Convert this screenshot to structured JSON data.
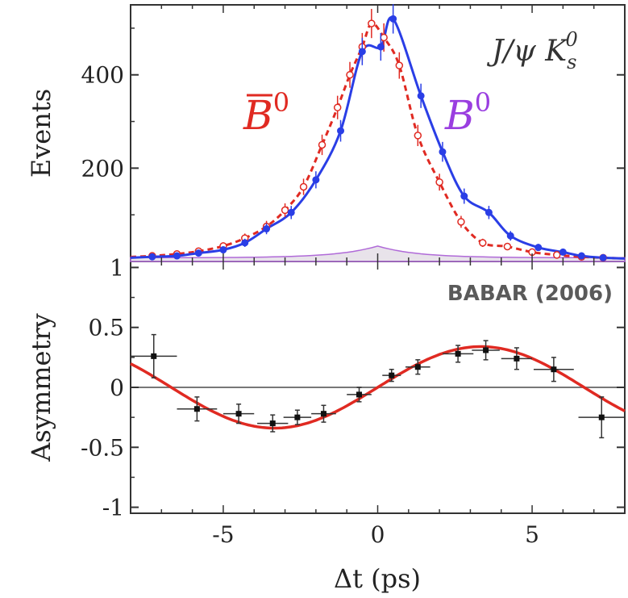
{
  "chart_data": [
    {
      "type": "scatter",
      "ylabel": "Events",
      "xlim": [
        -8,
        8
      ],
      "ylim": [
        0,
        550
      ],
      "yticks": [
        200,
        400
      ],
      "grid": false,
      "annotations": {
        "channel_main": "J/ψ K",
        "channel_sub": "s",
        "channel_sup": "0",
        "bbar_label": "B",
        "bbar_sup": "0",
        "b_label": "B",
        "b_sup": "0"
      },
      "series": [
        {
          "name": "B̄0",
          "color": "#e02a22",
          "marker": "open-circle",
          "fit_style": "dashed",
          "x": [
            -7.3,
            -6.5,
            -5.8,
            -5.0,
            -4.3,
            -3.6,
            -3.0,
            -2.4,
            -1.8,
            -1.3,
            -0.9,
            -0.5,
            -0.2,
            0.2,
            0.7,
            1.3,
            2.0,
            2.7,
            3.4,
            4.2,
            5.0,
            5.8,
            6.6,
            7.3
          ],
          "values": [
            12,
            16,
            22,
            33,
            50,
            75,
            110,
            160,
            250,
            330,
            400,
            460,
            510,
            480,
            420,
            270,
            170,
            85,
            40,
            32,
            20,
            14,
            10,
            8
          ]
        },
        {
          "name": "B0",
          "color": "#2a3ee6",
          "marker": "filled-circle",
          "fit_style": "solid",
          "x": [
            -7.3,
            -6.5,
            -5.8,
            -5.0,
            -4.3,
            -3.6,
            -2.8,
            -2.0,
            -1.2,
            -0.5,
            0.1,
            0.5,
            1.4,
            2.1,
            2.8,
            3.6,
            4.3,
            5.2,
            6.0,
            6.6,
            7.3
          ],
          "values": [
            10,
            12,
            18,
            25,
            40,
            70,
            105,
            175,
            280,
            450,
            460,
            520,
            355,
            235,
            140,
            105,
            55,
            30,
            20,
            12,
            8
          ]
        }
      ],
      "background": {
        "name": "background",
        "color": "#b06ad8",
        "peak": 25
      }
    },
    {
      "type": "scatter",
      "xlabel": "Δt (ps)",
      "ylabel": "Asymmetry",
      "xlim": [
        -8,
        8
      ],
      "ylim": [
        -1.05,
        1.05
      ],
      "xticks": [
        -5,
        0,
        5
      ],
      "yticks": [
        -1,
        -0.5,
        0,
        0.5,
        1
      ],
      "ytick_labels": [
        "-1",
        "-0.5",
        "0",
        "0.5",
        "1"
      ],
      "xtick_labels": [
        "-5",
        "0",
        "5"
      ],
      "grid": false,
      "annotation": "BABAR (2006)",
      "series": [
        {
          "name": "data",
          "color": "#111111",
          "x": [
            -7.25,
            -5.85,
            -4.5,
            -3.4,
            -2.6,
            -1.75,
            -0.6,
            0.45,
            1.3,
            2.6,
            3.5,
            4.5,
            5.7,
            7.25
          ],
          "values": [
            0.26,
            -0.18,
            -0.22,
            -0.3,
            -0.25,
            -0.22,
            -0.06,
            0.1,
            0.17,
            0.28,
            0.31,
            0.24,
            0.15,
            -0.25
          ],
          "xerr": [
            0.75,
            0.65,
            0.5,
            0.5,
            0.45,
            0.4,
            0.4,
            0.3,
            0.4,
            0.5,
            0.45,
            0.5,
            0.65,
            0.75
          ],
          "yerr": [
            0.18,
            0.1,
            0.08,
            0.07,
            0.06,
            0.07,
            0.06,
            0.05,
            0.06,
            0.07,
            0.08,
            0.09,
            0.1,
            0.17
          ]
        }
      ],
      "fit": {
        "name": "fit",
        "color": "#e02a22",
        "amplitude": 0.34,
        "omega": 0.47
      }
    }
  ]
}
